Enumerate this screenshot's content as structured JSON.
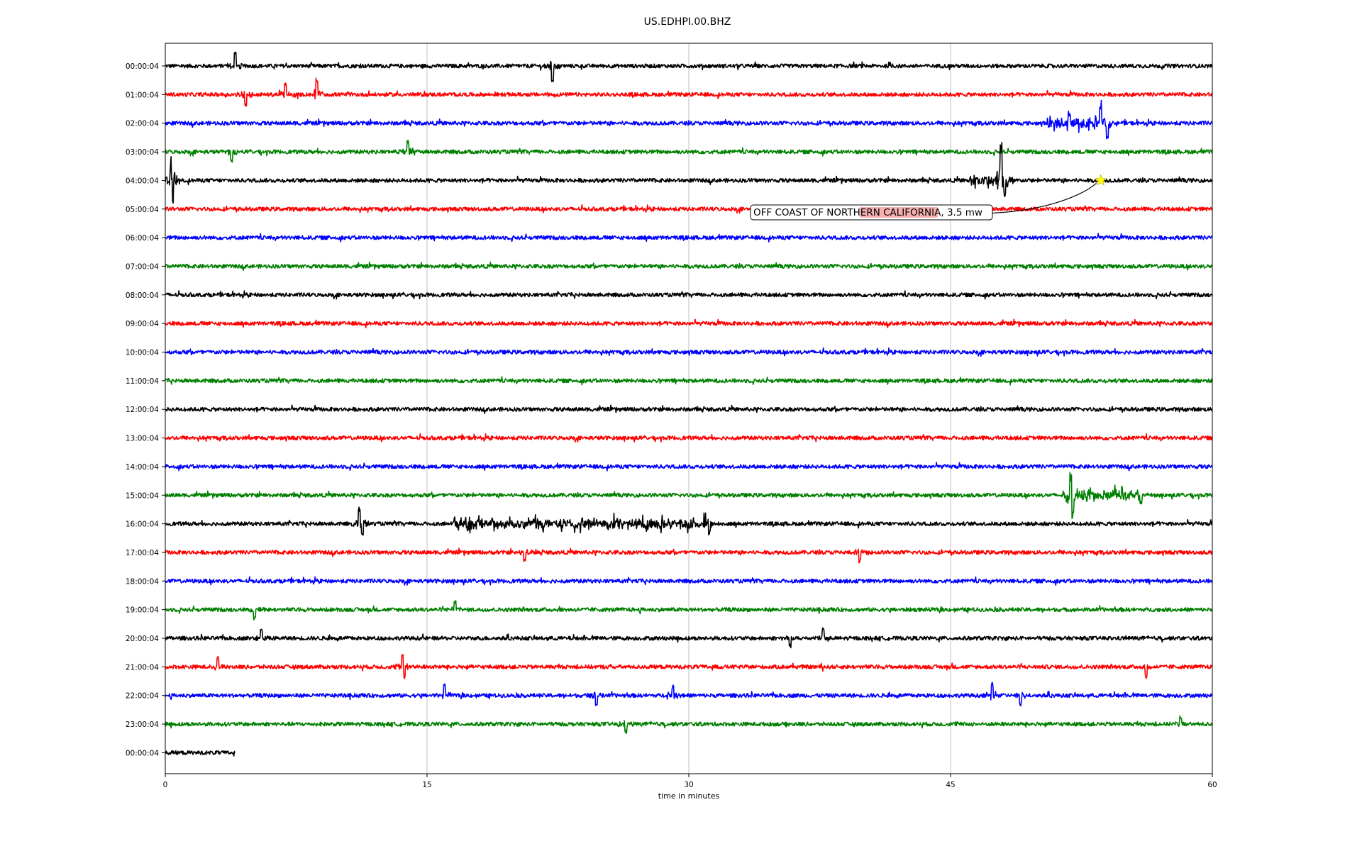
{
  "chart_data": {
    "type": "line",
    "title": "US.EDHPI.00.BHZ",
    "xlabel": "time in minutes",
    "xlim": [
      0,
      60
    ],
    "x_ticks": [
      0,
      15,
      30,
      45,
      60
    ],
    "grid": "vertical",
    "row_labels": [
      "00:00:04",
      "01:00:04",
      "02:00:04",
      "03:00:04",
      "04:00:04",
      "05:00:04",
      "06:00:04",
      "07:00:04",
      "08:00:04",
      "09:00:04",
      "10:00:04",
      "11:00:04",
      "12:00:04",
      "13:00:04",
      "14:00:04",
      "15:00:04",
      "16:00:04",
      "17:00:04",
      "18:00:04",
      "19:00:04",
      "20:00:04",
      "21:00:04",
      "22:00:04",
      "23:00:04",
      "00:00:04"
    ],
    "row_colors": [
      "#000000",
      "#ff0000",
      "#0000ff",
      "#008000"
    ],
    "last_row_end_minute": 4,
    "events": [
      {
        "row": 0,
        "minute": 4.0,
        "amplitude": 1.8
      },
      {
        "row": 0,
        "minute": 22.2,
        "amplitude": -2.0
      },
      {
        "row": 1,
        "minute": 4.6,
        "amplitude": -1.4
      },
      {
        "row": 1,
        "minute": 6.9,
        "amplitude": 1.4
      },
      {
        "row": 1,
        "minute": 8.7,
        "amplitude": 2.1
      },
      {
        "row": 2,
        "minute": 51.8,
        "amplitude": 1.2
      },
      {
        "row": 2,
        "minute": 53.6,
        "amplitude": 2.2
      },
      {
        "row": 2,
        "minute": 54.0,
        "amplitude": -1.4
      },
      {
        "row": 3,
        "minute": 3.8,
        "amplitude": -1.2
      },
      {
        "row": 3,
        "minute": 13.9,
        "amplitude": 1.4
      },
      {
        "row": 4,
        "minute": 0.35,
        "amplitude": 3.0
      },
      {
        "row": 4,
        "minute": 0.4,
        "amplitude": -3.0
      },
      {
        "row": 4,
        "minute": 47.9,
        "amplitude": 5.0
      },
      {
        "row": 4,
        "minute": 48.1,
        "amplitude": -1.6
      },
      {
        "row": 15,
        "minute": 51.9,
        "amplitude": 3.0
      },
      {
        "row": 15,
        "minute": 52.0,
        "amplitude": -3.0
      },
      {
        "row": 15,
        "minute": 55.9,
        "amplitude": -1.4
      },
      {
        "row": 16,
        "minute": 11.1,
        "amplitude": 2.2
      },
      {
        "row": 16,
        "minute": 11.3,
        "amplitude": -1.4
      },
      {
        "row": 16,
        "minute": 31.2,
        "amplitude": -1.5
      },
      {
        "row": 17,
        "minute": 20.6,
        "amplitude": -1.2
      },
      {
        "row": 17,
        "minute": 39.8,
        "amplitude": -1.2
      },
      {
        "row": 19,
        "minute": 5.1,
        "amplitude": -1.2
      },
      {
        "row": 19,
        "minute": 16.6,
        "amplitude": 1.1
      },
      {
        "row": 20,
        "minute": 5.5,
        "amplitude": 1.1
      },
      {
        "row": 20,
        "minute": 35.8,
        "amplitude": -1.1
      },
      {
        "row": 20,
        "minute": 37.7,
        "amplitude": 1.3
      },
      {
        "row": 21,
        "minute": 3.0,
        "amplitude": 1.3
      },
      {
        "row": 21,
        "minute": 13.6,
        "amplitude": 1.6
      },
      {
        "row": 21,
        "minute": 13.7,
        "amplitude": -1.5
      },
      {
        "row": 21,
        "minute": 56.2,
        "amplitude": -1.4
      },
      {
        "row": 22,
        "minute": 16.0,
        "amplitude": 1.4
      },
      {
        "row": 22,
        "minute": 24.7,
        "amplitude": -1.3
      },
      {
        "row": 22,
        "minute": 29.1,
        "amplitude": 1.2
      },
      {
        "row": 22,
        "minute": 47.4,
        "amplitude": 1.6
      },
      {
        "row": 22,
        "minute": 49.0,
        "amplitude": -1.2
      },
      {
        "row": 23,
        "minute": 26.4,
        "amplitude": -1.1
      },
      {
        "row": 23,
        "minute": 58.2,
        "amplitude": 1.0
      }
    ],
    "noisy_segments": [
      {
        "row": 16,
        "start_minute": 16.5,
        "end_minute": 31.3
      },
      {
        "row": 4,
        "start_minute": 46.0,
        "end_minute": 48.6
      },
      {
        "row": 2,
        "start_minute": 50.5,
        "end_minute": 54.2
      },
      {
        "row": 15,
        "start_minute": 51.5,
        "end_minute": 56.0
      }
    ],
    "annotation": {
      "text": "OFF COAST OF NORTHERN CALIFORNIA, 3.5 mw",
      "marker_row": 4,
      "marker_minute": 53.6
    }
  },
  "colors": {
    "annotation_box": "#ffffff",
    "annotation_highlight": "#f4a0a0",
    "marker": "#ffff00",
    "grid": "#b0b0b0"
  }
}
